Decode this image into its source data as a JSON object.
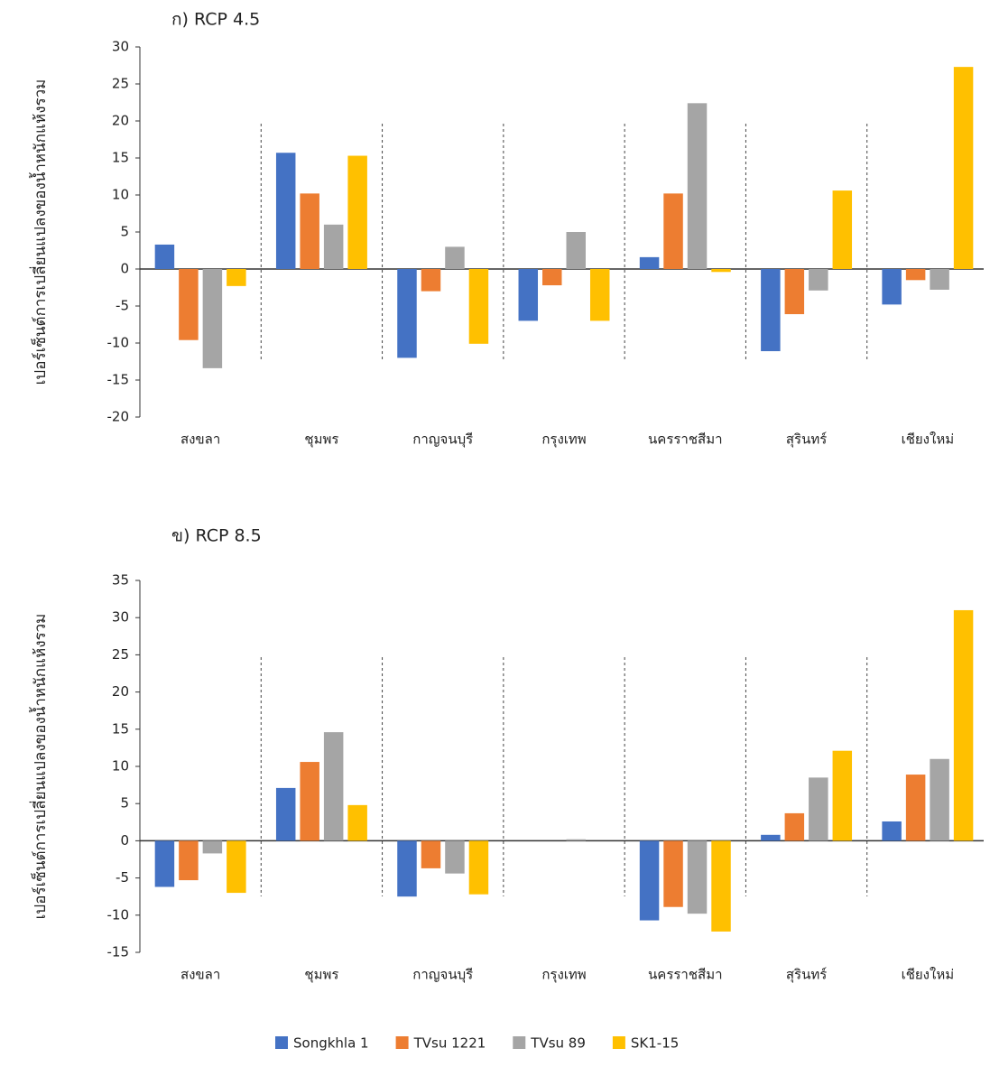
{
  "chart_data": [
    {
      "type": "bar",
      "title": "ก) RCP 4.5",
      "y_label": "เปอร์เซ็นต์การเปลี่ยนแปลงของน้ำหนักแห้งรวม",
      "categories": [
        "สงขลา",
        "ชุมพร",
        "กาญจนบุรี",
        "กรุงเทพ",
        "นครราชสีมา",
        "สุรินทร์",
        "เชียงใหม่"
      ],
      "series": [
        {
          "color": "#4472c4",
          "values": [
            3.3,
            15.7,
            -12.0,
            -7.0,
            1.6,
            -11.1,
            -4.8
          ]
        },
        {
          "color": "#ed7d31",
          "values": [
            -9.6,
            10.2,
            -3.0,
            -2.2,
            10.2,
            -6.1,
            -1.5
          ]
        },
        {
          "color": "#a5a5a5",
          "values": [
            -13.4,
            6.0,
            3.0,
            5.0,
            22.4,
            -2.9,
            -2.8
          ]
        },
        {
          "color": "#ffc000",
          "values": [
            -2.3,
            15.3,
            -10.1,
            -7.0,
            -0.4,
            10.6,
            27.3
          ]
        }
      ],
      "ylim": [
        -20,
        30
      ],
      "yticks": [
        -20,
        -15,
        -10,
        -5,
        0,
        5,
        10,
        15,
        20,
        25,
        30
      ]
    },
    {
      "type": "bar",
      "title": "ข) RCP 8.5",
      "y_label": "เปอร์เซ็นต์การเปลี่ยนแปลงของน้ำหนักแห้งรวม",
      "categories": [
        "สงขลา",
        "ชุมพร",
        "กาญจนบุรี",
        "กรุงเทพ",
        "นครราชสีมา",
        "สุรินทร์",
        "เชียงใหม่"
      ],
      "series": [
        {
          "name": "Songkhla 1",
          "color": "#4472c4",
          "values": [
            -6.2,
            7.1,
            -7.5,
            0,
            -10.7,
            0.8,
            2.6
          ]
        },
        {
          "name": "TVsu 1221",
          "color": "#ed7d31",
          "values": [
            -5.3,
            10.6,
            -3.7,
            0,
            -8.9,
            3.7,
            8.9
          ]
        },
        {
          "name": "TVsu 89",
          "color": "#a5a5a5",
          "values": [
            -1.7,
            14.6,
            -4.4,
            0.2,
            -9.8,
            8.5,
            11.0
          ]
        },
        {
          "name": "SK1-15",
          "color": "#ffc000",
          "values": [
            -7.0,
            4.8,
            -7.2,
            0,
            -12.2,
            12.1,
            31.0
          ]
        }
      ],
      "ylim": [
        -15,
        35
      ],
      "yticks": [
        -15,
        -10,
        -5,
        0,
        5,
        10,
        15,
        20,
        25,
        30,
        35
      ],
      "legend": "bottom"
    }
  ]
}
